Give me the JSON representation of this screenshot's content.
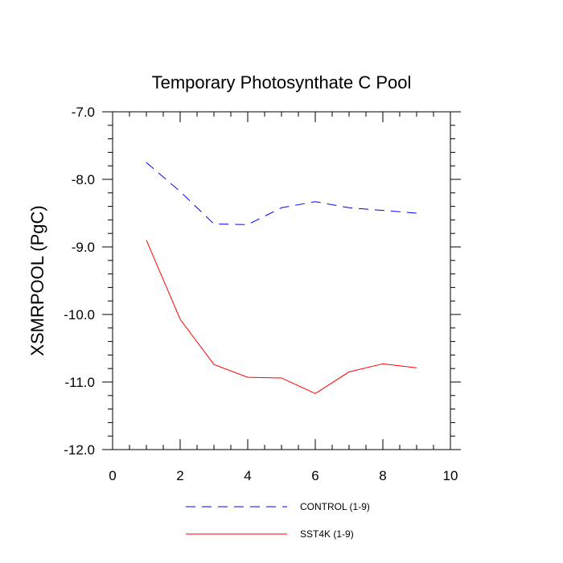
{
  "chart_data": {
    "type": "line",
    "title": "Temporary Photosynthate C Pool",
    "xlabel": "",
    "ylabel": "XSMRPOOL  (PgC)",
    "xlim": [
      0,
      10
    ],
    "ylim": [
      -12.0,
      -7.0
    ],
    "xticks": [
      0,
      2,
      4,
      6,
      8,
      10
    ],
    "xtick_labels": [
      "0",
      "2",
      "4",
      "6",
      "8",
      "10"
    ],
    "yticks": [
      -7.0,
      -8.0,
      -9.0,
      -10.0,
      -11.0,
      -12.0
    ],
    "ytick_labels": [
      "-7.0",
      "-8.0",
      "-9.0",
      "-10.0",
      "-11.0",
      "-12.0"
    ],
    "x": [
      1,
      2,
      3,
      4,
      5,
      6,
      7,
      8,
      9
    ],
    "series": [
      {
        "name": "CONTROL (1-9)",
        "color": "#0000ff",
        "dash": "dashed",
        "values": [
          -7.75,
          -8.18,
          -8.66,
          -8.67,
          -8.42,
          -8.33,
          -8.42,
          -8.46,
          -8.5
        ]
      },
      {
        "name": "SST4K (1-9)",
        "color": "#ff0000",
        "dash": "solid",
        "values": [
          -8.9,
          -10.07,
          -10.74,
          -10.93,
          -10.94,
          -11.17,
          -10.85,
          -10.73,
          -10.79
        ]
      }
    ],
    "legend_position": "bottom-center",
    "grid": false
  }
}
